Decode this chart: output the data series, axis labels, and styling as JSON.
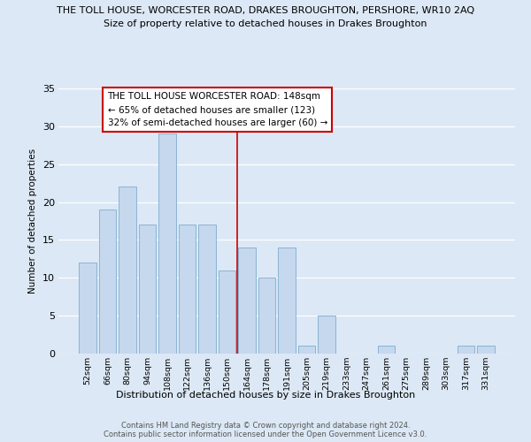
{
  "title": "THE TOLL HOUSE, WORCESTER ROAD, DRAKES BROUGHTON, PERSHORE, WR10 2AQ",
  "subtitle": "Size of property relative to detached houses in Drakes Broughton",
  "xlabel": "Distribution of detached houses by size in Drakes Broughton",
  "ylabel": "Number of detached properties",
  "bar_labels": [
    "52sqm",
    "66sqm",
    "80sqm",
    "94sqm",
    "108sqm",
    "122sqm",
    "136sqm",
    "150sqm",
    "164sqm",
    "178sqm",
    "191sqm",
    "205sqm",
    "219sqm",
    "233sqm",
    "247sqm",
    "261sqm",
    "275sqm",
    "289sqm",
    "303sqm",
    "317sqm",
    "331sqm"
  ],
  "bar_heights": [
    12,
    19,
    22,
    17,
    29,
    17,
    17,
    11,
    14,
    10,
    14,
    1,
    5,
    0,
    0,
    1,
    0,
    0,
    0,
    1,
    1
  ],
  "bar_color": "#c5d8ee",
  "bar_edge_color": "#8ab4d4",
  "reference_line_idx": 7.5,
  "annotation_title": "THE TOLL HOUSE WORCESTER ROAD: 148sqm",
  "annotation_line1": "← 65% of detached houses are smaller (123)",
  "annotation_line2": "32% of semi-detached houses are larger (60) →",
  "ylim": [
    0,
    35
  ],
  "yticks": [
    0,
    5,
    10,
    15,
    20,
    25,
    30,
    35
  ],
  "bg_color": "#dce8f5",
  "grid_color": "#ffffff",
  "footer1": "Contains HM Land Registry data © Crown copyright and database right 2024.",
  "footer2": "Contains public sector information licensed under the Open Government Licence v3.0."
}
